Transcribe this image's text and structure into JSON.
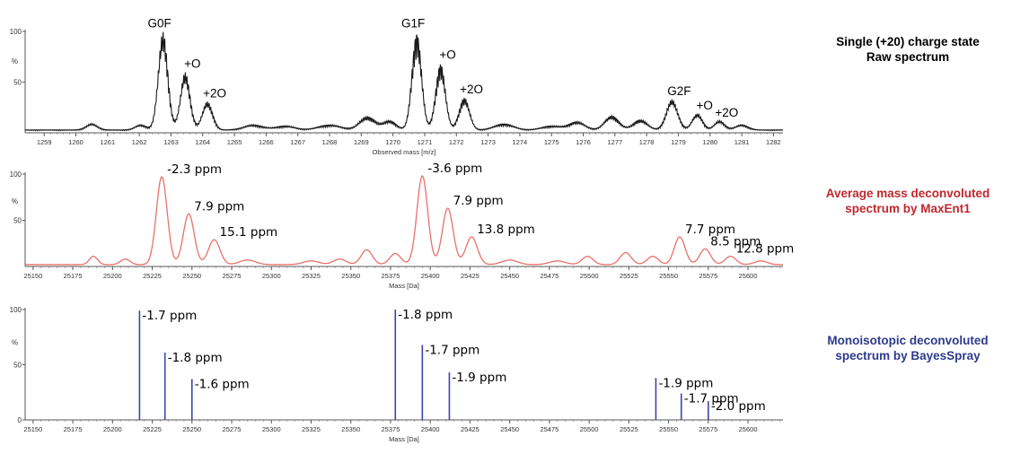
{
  "chart_data": [
    {
      "type": "line",
      "title_lines": [
        "Single (+20) charge state",
        "Raw spectrum"
      ],
      "title_color": "#000000",
      "xlabel": "Observed mass [m/z]",
      "ylabel": "%",
      "xlim": [
        1258.4,
        1282.3
      ],
      "ylim": [
        0,
        100
      ],
      "x_ticks": [
        1259,
        1260,
        1261,
        1262,
        1263,
        1264,
        1265,
        1266,
        1267,
        1268,
        1269,
        1270,
        1271,
        1272,
        1273,
        1274,
        1275,
        1276,
        1277,
        1278,
        1279,
        1280,
        1281,
        1282
      ],
      "y_ticks": [
        50,
        100
      ],
      "line_color": "#3a3a3a",
      "series_color": "#1a1a1a",
      "baseline": 3,
      "peaks": [
        {
          "x": 1260.5,
          "y": 6,
          "w": 0.18
        },
        {
          "x": 1262.05,
          "y": 5,
          "w": 0.18
        },
        {
          "x": 1262.75,
          "y": 97,
          "w": 0.15
        },
        {
          "x": 1263.45,
          "y": 57,
          "w": 0.15
        },
        {
          "x": 1264.15,
          "y": 28,
          "w": 0.16
        },
        {
          "x": 1265.6,
          "y": 5,
          "w": 0.3
        },
        {
          "x": 1266.6,
          "y": 4,
          "w": 0.3
        },
        {
          "x": 1268.0,
          "y": 5,
          "w": 0.35
        },
        {
          "x": 1269.2,
          "y": 13,
          "w": 0.25
        },
        {
          "x": 1269.9,
          "y": 9,
          "w": 0.2
        },
        {
          "x": 1270.75,
          "y": 97,
          "w": 0.15
        },
        {
          "x": 1271.5,
          "y": 66,
          "w": 0.15
        },
        {
          "x": 1272.25,
          "y": 32,
          "w": 0.16
        },
        {
          "x": 1273.5,
          "y": 6,
          "w": 0.3
        },
        {
          "x": 1275.0,
          "y": 4,
          "w": 0.3
        },
        {
          "x": 1275.8,
          "y": 8,
          "w": 0.25
        },
        {
          "x": 1276.9,
          "y": 14,
          "w": 0.22
        },
        {
          "x": 1277.8,
          "y": 10,
          "w": 0.22
        },
        {
          "x": 1278.8,
          "y": 30,
          "w": 0.18
        },
        {
          "x": 1279.6,
          "y": 16,
          "w": 0.16
        },
        {
          "x": 1280.3,
          "y": 9,
          "w": 0.16
        },
        {
          "x": 1281.0,
          "y": 5,
          "w": 0.2
        }
      ],
      "annotations": [
        {
          "text": "G0F",
          "x": 1262.75,
          "y": 97
        },
        {
          "text": "+O",
          "x": 1263.45,
          "y": 57
        },
        {
          "text": "+2O",
          "x": 1264.15,
          "y": 28
        },
        {
          "text": "G1F",
          "x": 1270.75,
          "y": 97
        },
        {
          "text": "+O",
          "x": 1271.5,
          "y": 66
        },
        {
          "text": "+2O",
          "x": 1272.25,
          "y": 32
        },
        {
          "text": "G2F",
          "x": 1278.8,
          "y": 30
        },
        {
          "text": "+O",
          "x": 1279.6,
          "y": 16
        },
        {
          "text": "+2O",
          "x": 1280.3,
          "y": 9
        }
      ]
    },
    {
      "type": "line",
      "title_lines": [
        "Average mass deconvoluted",
        "spectrum by MaxEnt1"
      ],
      "title_color": "#c0282d",
      "xlabel": "Mass [Da]",
      "ylabel": "%",
      "xlim": [
        25145,
        25622
      ],
      "ylim": [
        0,
        100
      ],
      "x_ticks": [
        25150,
        25175,
        25200,
        25225,
        25250,
        25275,
        25300,
        25325,
        25350,
        25375,
        25400,
        25425,
        25450,
        25475,
        25500,
        25525,
        25550,
        25575,
        25600
      ],
      "y_ticks": [
        50,
        100
      ],
      "series_color": "#e8706a",
      "baseline": 2,
      "peaks": [
        {
          "x": 25188,
          "y": 9,
          "w": 2.6
        },
        {
          "x": 25208,
          "y": 6,
          "w": 3
        },
        {
          "x": 25231,
          "y": 95,
          "w": 3.4
        },
        {
          "x": 25248,
          "y": 55,
          "w": 3.4
        },
        {
          "x": 25264,
          "y": 27,
          "w": 3.6
        },
        {
          "x": 25285,
          "y": 5,
          "w": 5
        },
        {
          "x": 25325,
          "y": 4,
          "w": 5
        },
        {
          "x": 25343,
          "y": 6,
          "w": 4
        },
        {
          "x": 25360,
          "y": 16,
          "w": 3.5
        },
        {
          "x": 25378,
          "y": 12,
          "w": 3.5
        },
        {
          "x": 25395,
          "y": 96,
          "w": 3.4
        },
        {
          "x": 25411,
          "y": 61,
          "w": 3.4
        },
        {
          "x": 25426,
          "y": 30,
          "w": 3.6
        },
        {
          "x": 25450,
          "y": 5,
          "w": 5
        },
        {
          "x": 25480,
          "y": 4,
          "w": 5
        },
        {
          "x": 25499,
          "y": 9,
          "w": 3.5
        },
        {
          "x": 25523,
          "y": 13,
          "w": 3.5
        },
        {
          "x": 25540,
          "y": 9,
          "w": 3.5
        },
        {
          "x": 25557,
          "y": 30,
          "w": 3.4
        },
        {
          "x": 25573,
          "y": 17,
          "w": 3.4
        },
        {
          "x": 25589,
          "y": 9,
          "w": 3.4
        },
        {
          "x": 25608,
          "y": 4,
          "w": 4
        }
      ],
      "annotations": [
        {
          "text": "-2.3 ppm",
          "x": 25231,
          "y": 95
        },
        {
          "text": "7.9 ppm",
          "x": 25248,
          "y": 55
        },
        {
          "text": "15.1 ppm",
          "x": 25264,
          "y": 27
        },
        {
          "text": "-3.6 ppm",
          "x": 25395,
          "y": 96
        },
        {
          "text": "7.9 ppm",
          "x": 25411,
          "y": 61
        },
        {
          "text": "13.8 ppm",
          "x": 25426,
          "y": 30
        },
        {
          "text": "7.7 ppm",
          "x": 25557,
          "y": 30
        },
        {
          "text": "8.5 ppm",
          "x": 25573,
          "y": 17
        },
        {
          "text": "12.8 ppm",
          "x": 25589,
          "y": 9
        }
      ]
    },
    {
      "type": "bar",
      "title_lines": [
        "Monoisotopic deconvoluted",
        "spectrum by BayesSpray"
      ],
      "title_color": "#2e3a8c",
      "xlabel": "Mass [Da]",
      "ylabel": "%",
      "xlim": [
        25145,
        25622
      ],
      "ylim": [
        0,
        100
      ],
      "x_ticks": [
        25150,
        25175,
        25200,
        25225,
        25250,
        25275,
        25300,
        25325,
        25350,
        25375,
        25400,
        25425,
        25450,
        25475,
        25500,
        25525,
        25550,
        25575,
        25600
      ],
      "y_ticks": [
        0,
        50,
        100
      ],
      "series_color": "#3b47a8",
      "sticks": [
        {
          "x": 25217,
          "y": 99,
          "label": "-1.7 ppm"
        },
        {
          "x": 25233,
          "y": 61,
          "label": "-1.8 ppm"
        },
        {
          "x": 25250,
          "y": 37,
          "label": "-1.6 ppm"
        },
        {
          "x": 25378,
          "y": 100,
          "label": "-1.8 ppm"
        },
        {
          "x": 25395,
          "y": 68,
          "label": "-1.7 ppm"
        },
        {
          "x": 25412,
          "y": 43,
          "label": "-1.9 ppm"
        },
        {
          "x": 25542,
          "y": 38,
          "label": "-1.9 ppm"
        },
        {
          "x": 25558,
          "y": 24,
          "label": "-1.7 ppm"
        },
        {
          "x": 25575,
          "y": 17,
          "label": "-2.0 ppm"
        }
      ]
    }
  ]
}
